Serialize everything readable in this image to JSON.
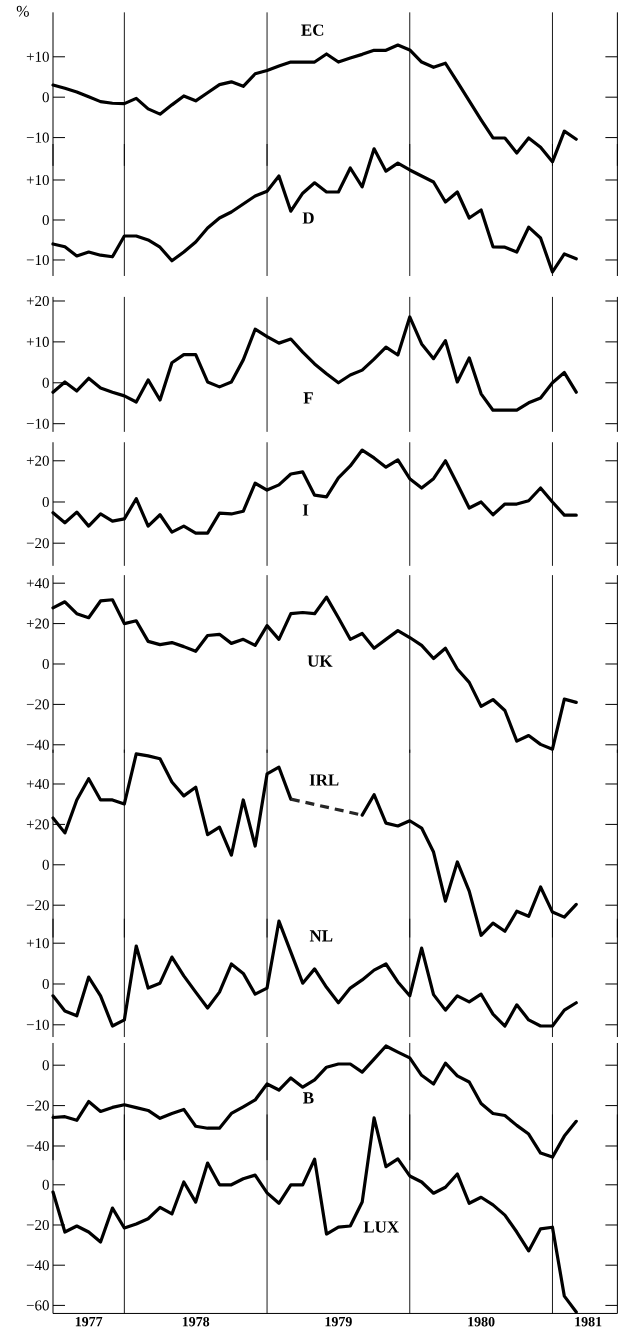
{
  "chart_data": [
    {
      "type": "line",
      "ylabel": "%",
      "tick_labels": "y",
      "xlim": [
        "1977-07",
        "1981-06-15"
      ],
      "ylim": [
        -17,
        21
      ],
      "yticks": [
        {
          "value": 10,
          "label": "+10"
        },
        0,
        {
          "value": -10,
          "label": "−10"
        }
      ],
      "ref_lines": [
        {
          "axis": "x",
          "value": "1978"
        },
        {
          "axis": "x",
          "value": "1979"
        },
        {
          "axis": "x",
          "value": "1980"
        },
        {
          "axis": "x",
          "value": "1981"
        }
      ],
      "x": [
        "1977-07",
        "1977-08",
        "1977-09",
        "1977-10",
        "1977-11",
        "1977-12",
        "1978-01",
        "1978-02",
        "1978-03",
        "1978-04",
        "1978-05",
        "1978-06",
        "1978-07",
        "1978-08",
        "1978-09",
        "1978-10",
        "1978-11",
        "1978-12",
        "1979-01",
        "1979-02",
        "1979-03",
        "1979-04",
        "1979-05",
        "1979-06",
        "1979-07",
        "1979-08",
        "1979-09",
        "1979-10",
        "1979-11",
        "1979-12",
        "1980-01",
        "1980-02",
        "1980-03",
        "1980-04",
        "1980-05",
        "1980-06",
        "1980-07",
        "1980-08",
        "1980-09",
        "1980-10",
        "1980-11",
        "1980-12",
        "1981-01",
        "1981-02",
        "1981-03"
      ],
      "series": [
        {
          "name": "EC",
          "color": "#000000",
          "values": [
            3,
            2.2,
            1.3,
            0.1,
            -1.1,
            -1.5,
            -1.6,
            -0.3,
            -2.9,
            -4.2,
            -1.9,
            0.3,
            -0.9,
            1.1,
            3.1,
            3.8,
            2.7,
            5.8,
            6.6,
            7.7,
            8.7,
            8.7,
            8.7,
            10.7,
            8.7,
            9.7,
            10.6,
            11.6,
            11.6,
            12.9,
            11.7,
            8.7,
            7.4,
            8.4,
            3.8,
            -0.9,
            -5.6,
            -10.1,
            -10.1,
            -13.8,
            -10.1,
            -12.4,
            -16,
            -8.4,
            -10.4
          ]
        }
      ]
    },
    {
      "type": "line",
      "tick_labels": "y",
      "xlim": [
        "1977-07",
        "1981-06-15"
      ],
      "ylim": [
        -14,
        19
      ],
      "yticks": [
        {
          "value": 10,
          "label": "+10"
        },
        0,
        {
          "value": -10,
          "label": "−10"
        }
      ],
      "ref_lines": [
        {
          "axis": "x",
          "value": "1978"
        },
        {
          "axis": "x",
          "value": "1979"
        },
        {
          "axis": "x",
          "value": "1980"
        },
        {
          "axis": "x",
          "value": "1981"
        }
      ],
      "x": [
        "1977-07",
        "1977-08",
        "1977-09",
        "1977-10",
        "1977-11",
        "1977-12",
        "1978-01",
        "1978-02",
        "1978-03",
        "1978-04",
        "1978-05",
        "1978-06",
        "1978-07",
        "1978-08",
        "1978-09",
        "1978-10",
        "1978-11",
        "1978-12",
        "1979-01",
        "1979-02",
        "1979-03",
        "1979-04",
        "1979-05",
        "1979-06",
        "1979-07",
        "1979-08",
        "1979-09",
        "1979-10",
        "1979-11",
        "1979-12",
        "1980-01",
        "1980-02",
        "1980-03",
        "1980-04",
        "1980-05",
        "1980-06",
        "1980-07",
        "1980-08",
        "1980-09",
        "1980-10",
        "1980-11",
        "1980-12",
        "1981-01",
        "1981-02",
        "1981-03"
      ],
      "series": [
        {
          "name": "D",
          "color": "#000000",
          "values": [
            -6,
            -6.7,
            -9,
            -8,
            -8.8,
            -9.2,
            -4,
            -4,
            -5,
            -6.8,
            -10.2,
            -8,
            -5.5,
            -2,
            0.5,
            2,
            4,
            6,
            7.2,
            11,
            2.2,
            6.7,
            9.3,
            7,
            7,
            13,
            8.3,
            17.8,
            12.2,
            14.2,
            12.5,
            11,
            9.5,
            4.5,
            7,
            0.5,
            2.5,
            -6.7,
            -6.8,
            -8,
            -1.8,
            -4.5,
            -13,
            -8.5,
            -9.7
          ]
        }
      ]
    },
    {
      "type": "line",
      "tick_labels": "y",
      "xlim": [
        "1977-07",
        "1981-06-15"
      ],
      "ylim": [
        -12,
        21
      ],
      "yticks": [
        {
          "value": 20,
          "label": "+20"
        },
        {
          "value": 10,
          "label": "+10"
        },
        0,
        {
          "value": -10,
          "label": "−10"
        }
      ],
      "ref_lines": [
        {
          "axis": "x",
          "value": "1978"
        },
        {
          "axis": "x",
          "value": "1979"
        },
        {
          "axis": "x",
          "value": "1980"
        },
        {
          "axis": "x",
          "value": "1981"
        }
      ],
      "x": [
        "1977-07",
        "1977-08",
        "1977-09",
        "1977-10",
        "1977-11",
        "1977-12",
        "1978-01",
        "1978-02",
        "1978-03",
        "1978-04",
        "1978-05",
        "1978-06",
        "1978-07",
        "1978-08",
        "1978-09",
        "1978-10",
        "1978-11",
        "1978-12",
        "1979-01",
        "1979-02",
        "1979-03",
        "1979-04",
        "1979-05",
        "1979-06",
        "1979-07",
        "1979-08",
        "1979-09",
        "1979-10",
        "1979-11",
        "1979-12",
        "1980-01",
        "1980-02",
        "1980-03",
        "1980-04",
        "1980-05",
        "1980-06",
        "1980-07",
        "1980-08",
        "1980-09",
        "1980-10",
        "1980-11",
        "1980-12",
        "1981-01",
        "1981-02",
        "1981-03"
      ],
      "series": [
        {
          "name": "F",
          "color": "#000000",
          "values": [
            -2.3,
            0.2,
            -2,
            1.1,
            -1.3,
            -2.3,
            -3.2,
            -4.7,
            0.7,
            -4.2,
            4.9,
            6.9,
            6.9,
            0.2,
            -1,
            0.2,
            5.6,
            13.1,
            11.3,
            9.7,
            10.7,
            7.5,
            4.6,
            2.2,
            0,
            1.9,
            3.1,
            5.8,
            8.7,
            6.8,
            16.1,
            9.5,
            5.9,
            10.3,
            0.2,
            6.1,
            -2.7,
            -6.7,
            -6.7,
            -6.7,
            -4.9,
            -3.7,
            0,
            2.5,
            -2.3
          ]
        }
      ]
    },
    {
      "type": "line",
      "tick_labels": "y",
      "xlim": [
        "1977-07",
        "1981-06-15"
      ],
      "ylim": [
        -31,
        29
      ],
      "yticks": [
        {
          "value": 20,
          "label": "+20"
        },
        0,
        {
          "value": -20,
          "label": "−20"
        }
      ],
      "ref_lines": [
        {
          "axis": "x",
          "value": "1978"
        },
        {
          "axis": "x",
          "value": "1979"
        },
        {
          "axis": "x",
          "value": "1980"
        },
        {
          "axis": "x",
          "value": "1981"
        }
      ],
      "x": [
        "1977-07",
        "1977-08",
        "1977-09",
        "1977-10",
        "1977-11",
        "1977-12",
        "1978-01",
        "1978-02",
        "1978-03",
        "1978-04",
        "1978-05",
        "1978-06",
        "1978-07",
        "1978-08",
        "1978-09",
        "1978-10",
        "1978-11",
        "1978-12",
        "1979-01",
        "1979-02",
        "1979-03",
        "1979-04",
        "1979-05",
        "1979-06",
        "1979-07",
        "1979-08",
        "1979-09",
        "1979-10",
        "1979-11",
        "1979-12",
        "1980-01",
        "1980-02",
        "1980-03",
        "1980-04",
        "1980-05",
        "1980-06",
        "1980-07",
        "1980-08",
        "1980-09",
        "1980-10",
        "1980-11",
        "1980-12",
        "1981-01",
        "1981-02",
        "1981-03"
      ],
      "series": [
        {
          "name": "I",
          "color": "#000000",
          "values": [
            -5.2,
            -10.1,
            -4.9,
            -11.7,
            -5.8,
            -9.3,
            -8.2,
            1.6,
            -11.7,
            -6.2,
            -14.6,
            -11.7,
            -15.1,
            -15.1,
            -5.4,
            -5.8,
            -4.5,
            9.1,
            5.8,
            8.3,
            13.6,
            14.6,
            3.3,
            2.5,
            11.7,
            17.5,
            25.2,
            21.4,
            16.9,
            20.4,
            11.3,
            6.8,
            11.3,
            20,
            8.7,
            -2.9,
            0,
            -6.2,
            -1,
            -1,
            0.6,
            6.8,
            0,
            -6.4,
            -6.4
          ]
        }
      ]
    },
    {
      "type": "line",
      "tick_labels": "y",
      "xlim": [
        "1977-07",
        "1981-06-15"
      ],
      "ylim": [
        -44,
        44
      ],
      "yticks": [
        {
          "value": 40,
          "label": "+40"
        },
        {
          "value": 20,
          "label": "+20"
        },
        0,
        {
          "value": -20,
          "label": "−20"
        },
        {
          "value": -40,
          "label": "−40"
        }
      ],
      "ref_lines": [
        {
          "axis": "x",
          "value": "1978"
        },
        {
          "axis": "x",
          "value": "1979"
        },
        {
          "axis": "x",
          "value": "1980"
        },
        {
          "axis": "x",
          "value": "1981"
        }
      ],
      "x": [
        "1977-07",
        "1977-08",
        "1977-09",
        "1977-10",
        "1977-11",
        "1977-12",
        "1978-01",
        "1978-02",
        "1978-03",
        "1978-04",
        "1978-05",
        "1978-06",
        "1978-07",
        "1978-08",
        "1978-09",
        "1978-10",
        "1978-11",
        "1978-12",
        "1979-01",
        "1979-02",
        "1979-03",
        "1979-04",
        "1979-05",
        "1979-06",
        "1979-07",
        "1979-08",
        "1979-09",
        "1979-10",
        "1979-11",
        "1979-12",
        "1980-01",
        "1980-02",
        "1980-03",
        "1980-04",
        "1980-05",
        "1980-06",
        "1980-07",
        "1980-08",
        "1980-09",
        "1980-10",
        "1980-11",
        "1980-12",
        "1981-01",
        "1981-02",
        "1981-03"
      ],
      "series": [
        {
          "name": "UK",
          "color": "#000000",
          "values": [
            27.8,
            30.8,
            24.9,
            22.9,
            31.2,
            31.8,
            20,
            21.4,
            11.2,
            9.6,
            10.6,
            8.6,
            6.3,
            14.1,
            14.7,
            10.2,
            12.2,
            9.2,
            19,
            12.2,
            24.9,
            25.5,
            24.9,
            33.1,
            22.9,
            12.2,
            15.1,
            7.8,
            12.2,
            16.5,
            13.1,
            9.2,
            2.7,
            7.8,
            -2.5,
            -9.1,
            -21,
            -17.6,
            -23,
            -38.2,
            -35.4,
            -39.8,
            -42.2,
            -17.4,
            -19
          ]
        }
      ]
    },
    {
      "type": "line",
      "tick_labels": "y",
      "xlim": [
        "1977-07",
        "1981-06-15"
      ],
      "ylim": [
        -36,
        57
      ],
      "yticks": [
        {
          "value": 40,
          "label": "+40"
        },
        {
          "value": 20,
          "label": "+20"
        },
        0,
        {
          "value": -20,
          "label": "−20"
        }
      ],
      "ref_lines": [
        {
          "axis": "x",
          "value": "1978"
        },
        {
          "axis": "x",
          "value": "1979"
        },
        {
          "axis": "x",
          "value": "1980"
        },
        {
          "axis": "x",
          "value": "1981"
        }
      ],
      "x": [
        "1977-07",
        "1977-08",
        "1977-09",
        "1977-10",
        "1977-11",
        "1977-12",
        "1978-01",
        "1978-02",
        "1978-03",
        "1978-04",
        "1978-05",
        "1978-06",
        "1978-07",
        "1978-08",
        "1978-09",
        "1978-10",
        "1978-11",
        "1978-12",
        "1979-01",
        "1979-02",
        "1979-03",
        "1979-04",
        "1979-05",
        "1979-06",
        "1979-07",
        "1979-08",
        "1979-09",
        "1979-10",
        "1979-11",
        "1979-12",
        "1980-01",
        "1980-02",
        "1980-03",
        "1980-04",
        "1980-05",
        "1980-06",
        "1980-07",
        "1980-08",
        "1980-09",
        "1980-10",
        "1980-11",
        "1980-12",
        "1981-01",
        "1981-02",
        "1981-03"
      ],
      "series": [
        {
          "name": "IRL",
          "color": "#000000",
          "values": [
            23.2,
            15.8,
            32.1,
            42.6,
            32.1,
            32.1,
            30.1,
            54.9,
            53.9,
            52.5,
            41,
            34.1,
            38.4,
            14.9,
            18.6,
            4.8,
            32.1,
            9.3,
            45,
            48.3,
            32.5,
            null,
            null,
            null,
            null,
            null,
            24.6,
            34.7,
            20.6,
            19.2,
            21.8,
            18.2,
            6.3,
            -18,
            1.4,
            -13,
            -34.9,
            -28.9,
            -32.9,
            -23,
            -25.5,
            -11,
            -23.4,
            -25.9,
            -19.6
          ]
        },
        {
          "color": "#262626",
          "line_style": "dashed",
          "x": [
            "1979-03",
            "1979-09"
          ],
          "values": [
            32.5,
            24.6
          ]
        }
      ]
    },
    {
      "type": "line",
      "tick_labels": "y",
      "xlim": [
        "1977-07",
        "1981-06-15"
      ],
      "ylim": [
        -13,
        16
      ],
      "yticks": [
        {
          "value": 10,
          "label": "+10"
        },
        0,
        {
          "value": -10,
          "label": "−10"
        }
      ],
      "ref_lines": [
        {
          "axis": "x",
          "value": "1978"
        },
        {
          "axis": "x",
          "value": "1979"
        },
        {
          "axis": "x",
          "value": "1980"
        },
        {
          "axis": "x",
          "value": "1981"
        }
      ],
      "x": [
        "1977-07",
        "1977-08",
        "1977-09",
        "1977-10",
        "1977-11",
        "1977-12",
        "1978-01",
        "1978-02",
        "1978-03",
        "1978-04",
        "1978-05",
        "1978-06",
        "1978-07",
        "1978-08",
        "1978-09",
        "1978-10",
        "1978-11",
        "1978-12",
        "1979-01",
        "1979-02",
        "1979-03",
        "1979-04",
        "1979-05",
        "1979-06",
        "1979-07",
        "1979-08",
        "1979-09",
        "1979-10",
        "1979-11",
        "1979-12",
        "1980-01",
        "1980-02",
        "1980-03",
        "1980-04",
        "1980-05",
        "1980-06",
        "1980-07",
        "1980-08",
        "1980-09",
        "1980-10",
        "1980-11",
        "1980-12",
        "1981-01",
        "1981-02",
        "1981-03"
      ],
      "series": [
        {
          "name": "NL",
          "color": "#000000",
          "values": [
            -2.9,
            -6.6,
            -7.8,
            1.7,
            -2.9,
            -10.3,
            -8.8,
            9.3,
            -1,
            0.2,
            6.6,
            2,
            -2,
            -5.9,
            -2,
            4.9,
            2.6,
            -2.5,
            -1,
            15.4,
            7.8,
            0.2,
            3.7,
            -0.8,
            -4.6,
            -1,
            1,
            3.4,
            4.9,
            0.5,
            -2.9,
            8.8,
            -2.6,
            -6.4,
            -2.9,
            -4.4,
            -2.5,
            -7.4,
            -10.3,
            -5.1,
            -8.8,
            -10.3,
            -10.3,
            -6.4,
            -4.6
          ]
        }
      ]
    },
    {
      "type": "line",
      "tick_labels": "y",
      "xlim": [
        "1977-07",
        "1981-06-15"
      ],
      "ylim": [
        -47,
        11
      ],
      "yticks": [
        0,
        {
          "value": -20,
          "label": "−20"
        },
        {
          "value": -40,
          "label": "−40"
        }
      ],
      "ref_lines": [
        {
          "axis": "x",
          "value": "1978"
        },
        {
          "axis": "x",
          "value": "1979"
        },
        {
          "axis": "x",
          "value": "1980"
        },
        {
          "axis": "x",
          "value": "1981"
        }
      ],
      "x": [
        "1977-07",
        "1977-08",
        "1977-09",
        "1977-10",
        "1977-11",
        "1977-12",
        "1978-01",
        "1978-02",
        "1978-03",
        "1978-04",
        "1978-05",
        "1978-06",
        "1978-07",
        "1978-08",
        "1978-09",
        "1978-10",
        "1978-11",
        "1978-12",
        "1979-01",
        "1979-02",
        "1979-03",
        "1979-04",
        "1979-05",
        "1979-06",
        "1979-07",
        "1979-08",
        "1979-09",
        "1979-10",
        "1979-11",
        "1979-12",
        "1980-01",
        "1980-02",
        "1980-03",
        "1980-04",
        "1980-05",
        "1980-06",
        "1980-07",
        "1980-08",
        "1980-09",
        "1980-10",
        "1980-11",
        "1980-12",
        "1981-01",
        "1981-02",
        "1981-03"
      ],
      "series": [
        {
          "name": "B",
          "color": "#000000",
          "values": [
            -25.9,
            -25.5,
            -27.3,
            -18,
            -22.9,
            -20.9,
            -19.6,
            -21,
            -22.4,
            -26.3,
            -23.9,
            -21.9,
            -30.2,
            -31.2,
            -31.2,
            -23.9,
            -20.6,
            -17.2,
            -9.3,
            -12.3,
            -6.3,
            -10.9,
            -7.3,
            -1,
            0.6,
            0.6,
            -3.4,
            3,
            9.5,
            6.5,
            3.6,
            -5,
            -9.3,
            1,
            -5.3,
            -8.3,
            -19,
            -23.9,
            -24.9,
            -29.8,
            -34.1,
            -43.5,
            -45.5,
            -35.1,
            -27.8
          ]
        }
      ]
    },
    {
      "type": "line",
      "xlim": [
        "1977-07",
        "1981-06-15"
      ],
      "ylim": [
        -64,
        35
      ],
      "yticks": [
        0,
        {
          "value": -20,
          "label": "−20"
        },
        {
          "value": -40,
          "label": "−40"
        },
        {
          "value": -60,
          "label": "−60"
        }
      ],
      "xticks": [
        {
          "value": "1977-10",
          "label": "1977"
        },
        {
          "value": "1978-07",
          "label": "1978"
        },
        {
          "value": "1979-07",
          "label": "1979"
        },
        {
          "value": "1980-07",
          "label": "1980"
        },
        {
          "value": "1981-04",
          "label": "1981"
        }
      ],
      "ref_lines": [
        {
          "axis": "x",
          "value": "1978"
        },
        {
          "axis": "x",
          "value": "1979"
        },
        {
          "axis": "x",
          "value": "1980"
        },
        {
          "axis": "x",
          "value": "1981"
        }
      ],
      "x": [
        "1977-07",
        "1977-08",
        "1977-09",
        "1977-10",
        "1977-11",
        "1977-12",
        "1978-01",
        "1978-02",
        "1978-03",
        "1978-04",
        "1978-05",
        "1978-06",
        "1978-07",
        "1978-08",
        "1978-09",
        "1978-10",
        "1978-11",
        "1978-12",
        "1979-01",
        "1979-02",
        "1979-03",
        "1979-04",
        "1979-05",
        "1979-06",
        "1979-07",
        "1979-08",
        "1979-09",
        "1979-10",
        "1979-11",
        "1979-12",
        "1980-01",
        "1980-02",
        "1980-03",
        "1980-04",
        "1980-05",
        "1980-06",
        "1980-07",
        "1980-08",
        "1980-09",
        "1980-10",
        "1980-11",
        "1980-12",
        "1981-01",
        "1981-02",
        "1981-03"
      ],
      "series": [
        {
          "name": "LUX",
          "color": "#000000",
          "values": [
            -3.6,
            -23.5,
            -20.5,
            -23.5,
            -28.5,
            -11.6,
            -21.5,
            -19.5,
            -16.9,
            -11.2,
            -14.5,
            1.4,
            -8.6,
            10.8,
            0,
            0,
            3,
            4.8,
            -4,
            -9.2,
            0,
            0,
            12.7,
            -24.5,
            -21.1,
            -20.5,
            -8.6,
            33.3,
            9,
            12.9,
            4.4,
            1.4,
            -4.2,
            -1.2,
            5.4,
            -9.2,
            -6.2,
            -10,
            -15.1,
            -23.5,
            -32.9,
            -21.9,
            -21.1,
            -55.4,
            -63.3
          ]
        }
      ]
    }
  ]
}
